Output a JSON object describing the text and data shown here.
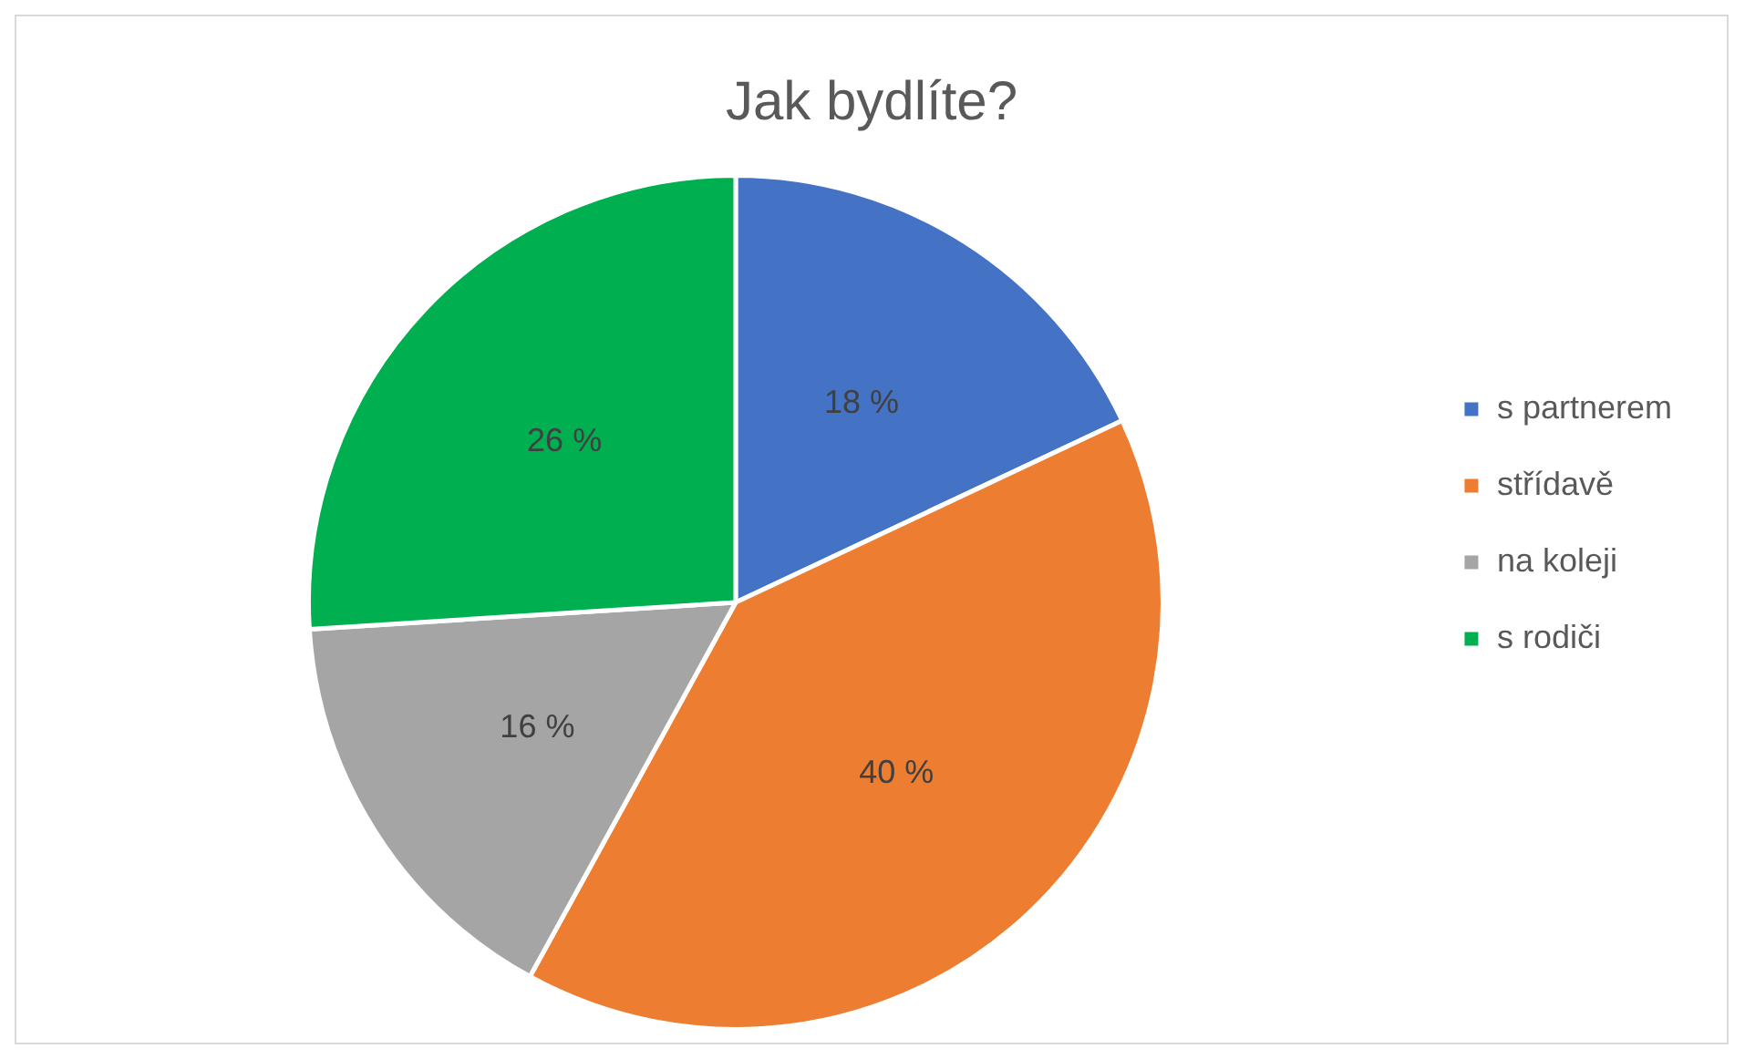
{
  "chart_data": {
    "type": "pie",
    "title": "Jak bydlíte?",
    "categories": [
      "s partnerem",
      "střídavě",
      "na koleji",
      "s rodiči"
    ],
    "values": [
      18,
      40,
      16,
      26
    ],
    "colors": [
      "#4472c4",
      "#ed7d31",
      "#a5a5a5",
      "#00b050"
    ],
    "value_labels": [
      "18 %",
      "40 %",
      "16 %",
      "26 %"
    ],
    "legend": "right"
  }
}
